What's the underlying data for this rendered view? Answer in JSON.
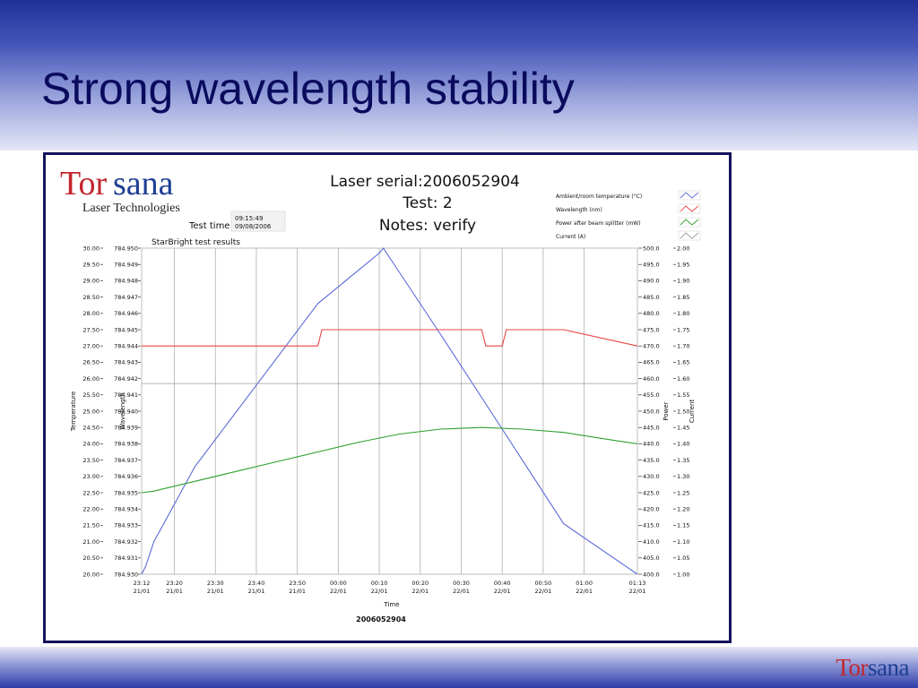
{
  "slide": {
    "title": "Strong wavelength stability",
    "footer_logo": {
      "part1": "Tor",
      "part2": "sana"
    }
  },
  "logo": {
    "part1": "Tor",
    "part2": "sana",
    "subtitle": "Laser Technologies"
  },
  "test_time": {
    "label": "Test time",
    "time": "09:15:49",
    "date": "09/08/2006"
  },
  "chart_data": {
    "type": "line",
    "title_lines": [
      "Laser serial:2006052904",
      "Test: 2",
      "Notes: verify"
    ],
    "subtitle": "StarBright test results",
    "footer_label": "2006052904",
    "xlabel": "Time",
    "x_ticks": [
      {
        "top": "23:12",
        "bottom": "21/01"
      },
      {
        "top": "23:20",
        "bottom": "21/01"
      },
      {
        "top": "23:30",
        "bottom": "21/01"
      },
      {
        "top": "23:40",
        "bottom": "21/01"
      },
      {
        "top": "23:50",
        "bottom": "21/01"
      },
      {
        "top": "00:00",
        "bottom": "22/01"
      },
      {
        "top": "00:10",
        "bottom": "22/01"
      },
      {
        "top": "00:20",
        "bottom": "22/01"
      },
      {
        "top": "00:30",
        "bottom": "22/01"
      },
      {
        "top": "00:40",
        "bottom": "22/01"
      },
      {
        "top": "00:50",
        "bottom": "22/01"
      },
      {
        "top": "01:00",
        "bottom": "22/01"
      },
      {
        "top": "01:13",
        "bottom": "22/01"
      }
    ],
    "xlim": [
      "21/01 23:12",
      "22/01 01:13"
    ],
    "axes": {
      "temperature": {
        "label": "Temperature",
        "range": [
          20.0,
          30.0
        ],
        "ticks": [
          "30.00",
          "29.50",
          "29.00",
          "28.50",
          "28.00",
          "27.50",
          "27.00",
          "26.50",
          "26.00",
          "25.50",
          "25.00",
          "24.50",
          "24.00",
          "23.50",
          "23.00",
          "22.50",
          "22.00",
          "21.50",
          "21.00",
          "20.50",
          "20.00"
        ]
      },
      "wavelength": {
        "label": "Wavelength",
        "range": [
          784.93,
          784.95
        ],
        "ticks": [
          "784.950",
          "784.949",
          "784.948",
          "784.947",
          "784.946",
          "784.945",
          "784.944",
          "784.943",
          "784.942",
          "784.941",
          "784.940",
          "784.939",
          "784.938",
          "784.937",
          "784.936",
          "784.935",
          "784.934",
          "784.933",
          "784.932",
          "784.931",
          "784.930"
        ]
      },
      "power": {
        "label": "Power",
        "range": [
          400.0,
          500.0
        ],
        "ticks": [
          "500.0",
          "495.0",
          "490.0",
          "485.0",
          "480.0",
          "475.0",
          "470.0",
          "465.0",
          "460.0",
          "455.0",
          "450.0",
          "445.0",
          "440.0",
          "435.0",
          "430.0",
          "425.0",
          "420.0",
          "415.0",
          "410.0",
          "405.0",
          "400.0"
        ]
      },
      "current": {
        "label": "Current",
        "range": [
          1.0,
          2.0
        ],
        "ticks": [
          "2.00",
          "1.95",
          "1.90",
          "1.85",
          "1.80",
          "1.75",
          "1.70",
          "1.65",
          "1.60",
          "1.55",
          "1.50",
          "1.45",
          "1.40",
          "1.35",
          "1.30",
          "1.25",
          "1.20",
          "1.15",
          "1.10",
          "1.05",
          "1.00"
        ]
      }
    },
    "grid": "vertical",
    "legend_position": "top-right",
    "series": [
      {
        "name": "Ambient/room temperature (°C)",
        "axis": "temperature",
        "color": "#5b6ad6",
        "x": [
          "21/01 23:12",
          "21/01 23:13",
          "21/01 23:15",
          "21/01 23:25",
          "21/01 23:40",
          "21/01 23:55",
          "22/01 00:10",
          "22/01 00:11",
          "22/01 00:25",
          "22/01 00:40",
          "22/01 00:55",
          "22/01 01:13"
        ],
        "y": [
          20.0,
          20.25,
          21.0,
          23.3,
          25.8,
          28.3,
          29.85,
          30.0,
          27.35,
          24.45,
          21.55,
          20.0
        ]
      },
      {
        "name": "Wavelength (nm)",
        "axis": "wavelength",
        "color": "#e84444",
        "x": [
          "21/01 23:12",
          "21/01 23:30",
          "21/01 23:55",
          "21/01 23:56",
          "22/01 00:35",
          "22/01 00:36",
          "22/01 00:40",
          "22/01 00:41",
          "22/01 00:55",
          "22/01 01:13"
        ],
        "y": [
          784.944,
          784.944,
          784.944,
          784.945,
          784.945,
          784.944,
          784.944,
          784.945,
          784.945,
          784.944
        ]
      },
      {
        "name": "Power after beam splitter (mW)",
        "axis": "power",
        "color": "#2ea02e",
        "x": [
          "21/01 23:12",
          "21/01 23:15",
          "21/01 23:25",
          "21/01 23:35",
          "21/01 23:45",
          "21/01 23:55",
          "22/01 00:05",
          "22/01 00:15",
          "22/01 00:25",
          "22/01 00:35",
          "22/01 00:45",
          "22/01 00:55",
          "22/01 01:05",
          "22/01 01:13"
        ],
        "y": [
          425.0,
          425.5,
          428.5,
          431.5,
          434.5,
          437.5,
          440.5,
          443.0,
          444.5,
          445.0,
          444.5,
          443.5,
          441.5,
          440.0
        ]
      },
      {
        "name": "Current (A)",
        "axis": "current",
        "color": "#9a9a9a",
        "x": [
          "21/01 23:12",
          "22/01 01:13"
        ],
        "y": [
          1.585,
          1.585
        ]
      }
    ]
  }
}
